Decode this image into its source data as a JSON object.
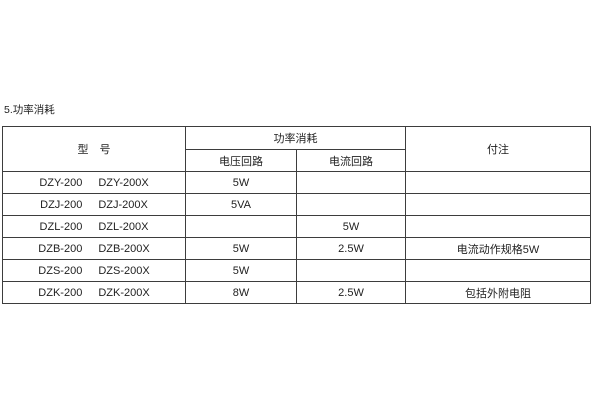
{
  "page": {
    "heading": "5.功率消耗"
  },
  "table": {
    "headers": {
      "model": "型　号",
      "power_group": "功率消耗",
      "voltage_circuit": "电压回路",
      "current_circuit": "电流回路",
      "notes": "付注"
    },
    "rows": [
      {
        "model_a": "DZY-200",
        "model_b": "DZY-200X",
        "voltage": "5W",
        "current": "",
        "note": ""
      },
      {
        "model_a": "DZJ-200",
        "model_b": "DZJ-200X",
        "voltage": "5VA",
        "current": "",
        "note": ""
      },
      {
        "model_a": "DZL-200",
        "model_b": "DZL-200X",
        "voltage": "",
        "current": "5W",
        "note": ""
      },
      {
        "model_a": "DZB-200",
        "model_b": "DZB-200X",
        "voltage": "5W",
        "current": "2.5W",
        "note": "电流动作规格5W"
      },
      {
        "model_a": "DZS-200",
        "model_b": "DZS-200X",
        "voltage": "5W",
        "current": "",
        "note": ""
      },
      {
        "model_a": "DZK-200",
        "model_b": "DZK-200X",
        "voltage": "8W",
        "current": "2.5W",
        "note": "包括外附电阻"
      }
    ]
  },
  "colors": {
    "background": "#ffffff",
    "border": "#3d3d3d",
    "text": "#1e1e1e"
  }
}
